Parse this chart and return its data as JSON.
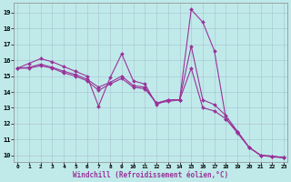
{
  "title": "",
  "xlabel": "Windchill (Refroidissement éolien,°C)",
  "ylabel": "",
  "bg_color": "#c0eaea",
  "line_color": "#993399",
  "grid_color": "#a0b8c8",
  "ylim": [
    9.6,
    19.6
  ],
  "xlim": [
    -0.3,
    23.3
  ],
  "yticks": [
    10,
    11,
    12,
    13,
    14,
    15,
    16,
    17,
    18,
    19
  ],
  "xticks": [
    0,
    1,
    2,
    3,
    4,
    5,
    6,
    7,
    8,
    9,
    10,
    11,
    12,
    13,
    14,
    15,
    16,
    17,
    18,
    19,
    20,
    21,
    22,
    23
  ],
  "series1": [
    15.5,
    15.8,
    16.1,
    15.9,
    15.6,
    15.3,
    15.0,
    13.1,
    14.9,
    16.4,
    14.7,
    14.5,
    13.2,
    13.5,
    13.5,
    19.2,
    18.4,
    16.6,
    12.3,
    11.5,
    10.5,
    10.0,
    9.9,
    9.85
  ],
  "series2": [
    15.5,
    15.55,
    15.75,
    15.55,
    15.3,
    15.1,
    14.8,
    14.3,
    14.6,
    15.0,
    14.4,
    14.3,
    13.3,
    13.5,
    13.5,
    16.9,
    13.5,
    13.2,
    12.5,
    11.5,
    10.5,
    10.0,
    9.95,
    9.85
  ],
  "series3": [
    15.5,
    15.5,
    15.65,
    15.5,
    15.2,
    15.0,
    14.7,
    14.1,
    14.5,
    14.85,
    14.3,
    14.2,
    13.3,
    13.4,
    13.5,
    15.5,
    13.0,
    12.8,
    12.3,
    11.4,
    10.5,
    10.0,
    9.95,
    9.85
  ],
  "marker": "D",
  "markersize": 2.0,
  "linewidth": 0.8
}
